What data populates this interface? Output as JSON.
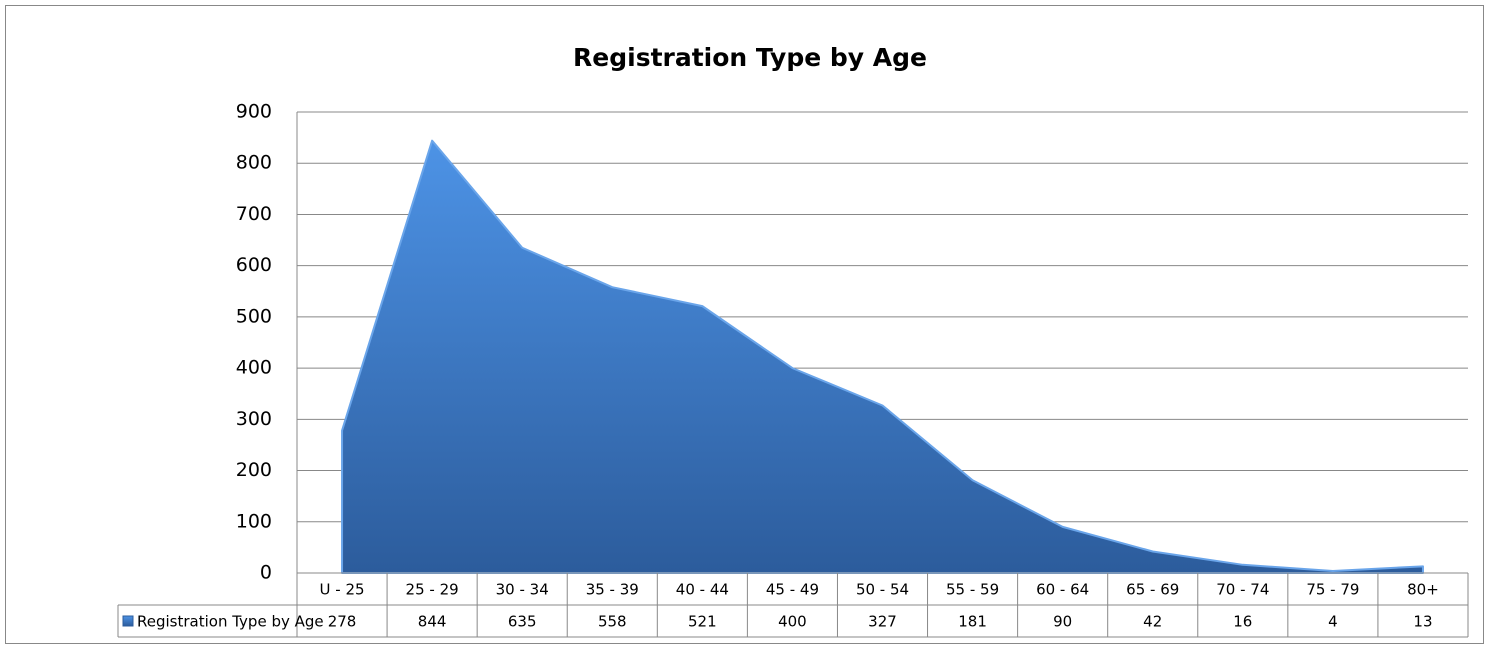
{
  "chart_data": {
    "type": "area",
    "title": "Registration Type by Age",
    "categories": [
      "U - 25",
      "25 - 29",
      "30 - 34",
      "35 - 39",
      "40 - 44",
      "45 - 49",
      "50 - 54",
      "55 - 59",
      "60 - 64",
      "65 - 69",
      "70 - 74",
      "75 - 79",
      "80+"
    ],
    "series": [
      {
        "name": "Registration Type by Age",
        "color": "#3a78c9",
        "values": [
          278,
          844,
          635,
          558,
          521,
          400,
          327,
          181,
          90,
          42,
          16,
          4,
          13
        ]
      }
    ],
    "ylim": [
      0,
      900
    ],
    "yticks": [
      0,
      100,
      200,
      300,
      400,
      500,
      600,
      700,
      800,
      900
    ],
    "grid": true,
    "data_table": true
  }
}
